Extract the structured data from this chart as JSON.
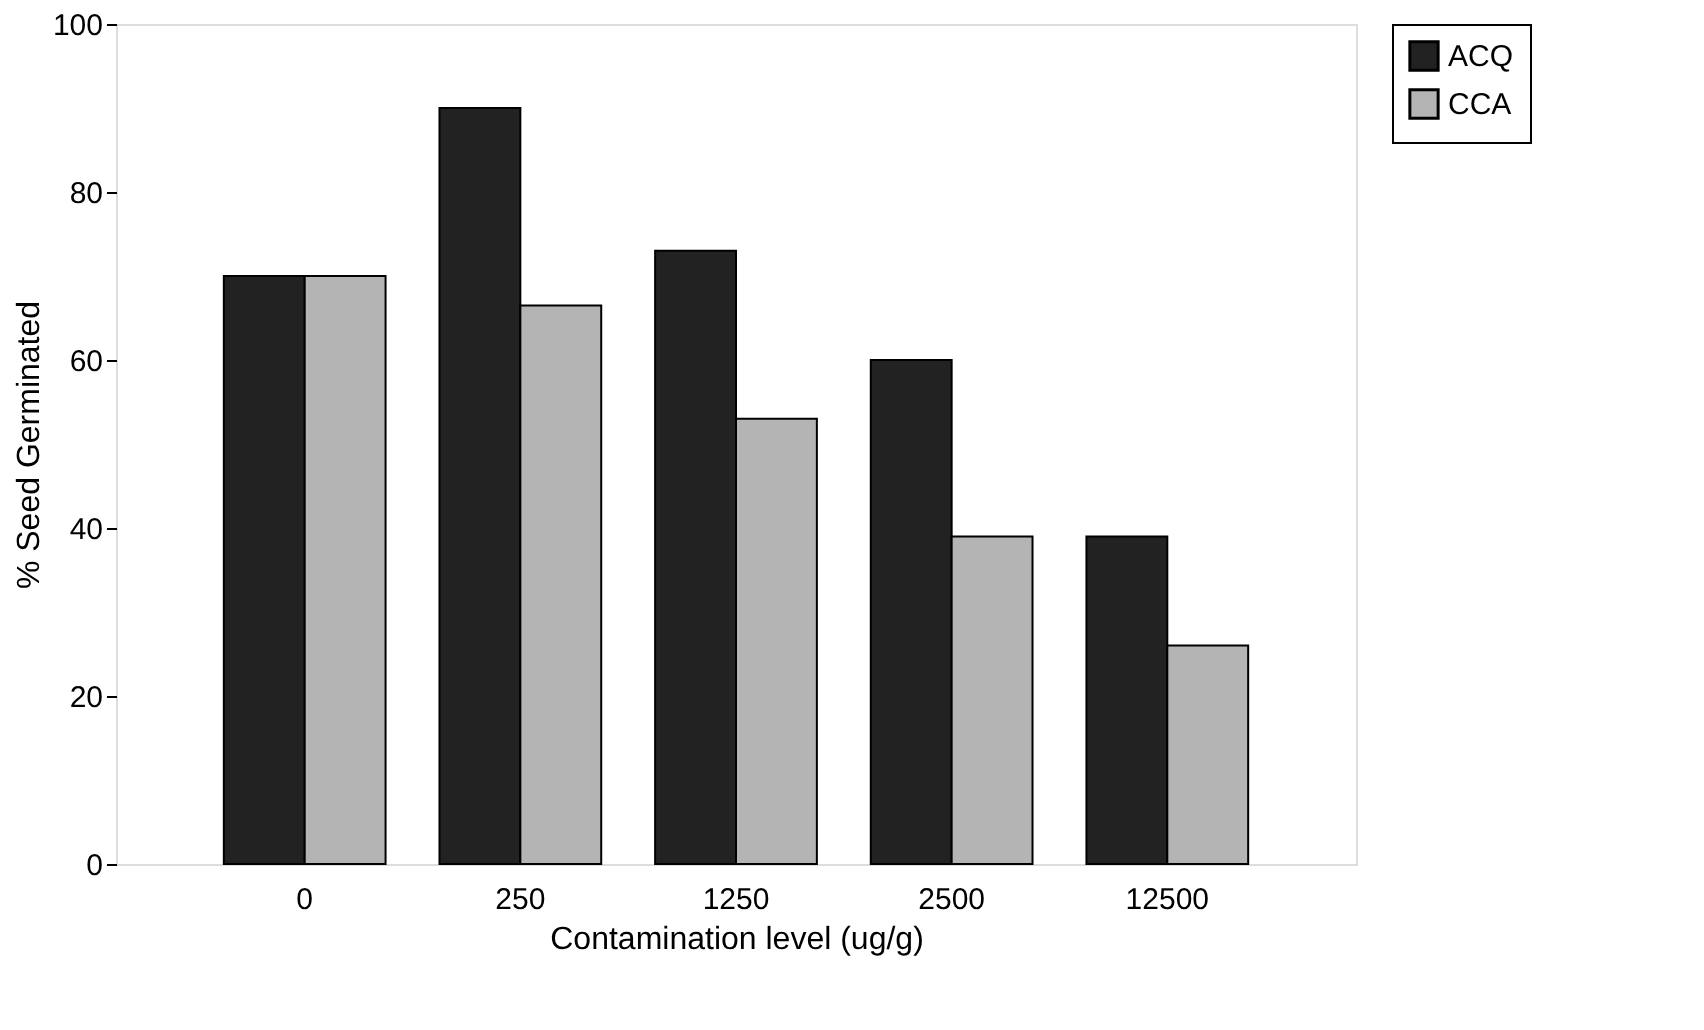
{
  "chart_data": {
    "type": "bar",
    "xlabel": "Contamination level (ug/g)",
    "ylabel": "% Seed Germinated",
    "categories": [
      "0",
      "250",
      "1250",
      "2500",
      "12500"
    ],
    "series": [
      {
        "name": "ACQ",
        "color": "#222222",
        "values": [
          70,
          90,
          73,
          60,
          39
        ]
      },
      {
        "name": "CCA",
        "color": "#b4b4b4",
        "values": [
          70,
          66.5,
          53,
          39,
          26
        ]
      }
    ],
    "ylim": [
      0,
      100
    ],
    "yticks": [
      0,
      20,
      40,
      60,
      80,
      100
    ],
    "grid": false,
    "legend": "right"
  }
}
